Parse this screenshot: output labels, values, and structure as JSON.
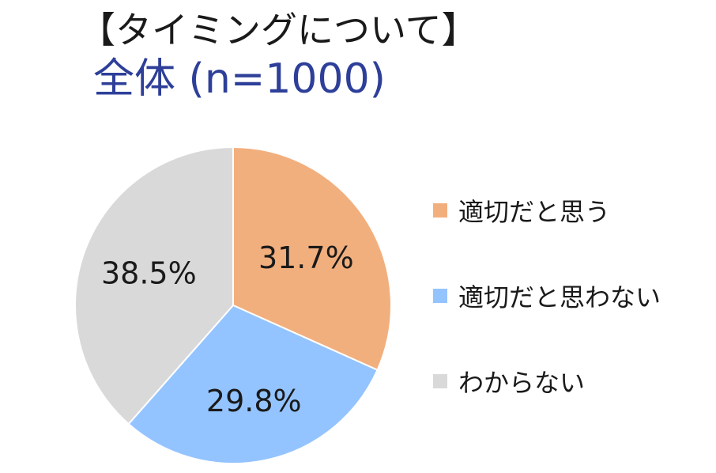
{
  "chart_data": {
    "type": "pie",
    "title": "【タイミングについて】",
    "subtitle": "全体 (n=1000)",
    "slices": [
      {
        "label": "適切だと思う",
        "value": 31.7,
        "value_label": "31.7%",
        "color": "#f2af7e"
      },
      {
        "label": "適切だと思わない",
        "value": 29.8,
        "value_label": "29.8%",
        "color": "#94c4ff"
      },
      {
        "label": "わからない",
        "value": 38.5,
        "value_label": "38.5%",
        "color": "#d9d9d9"
      }
    ],
    "start_angle_deg": 0,
    "direction": "clockwise",
    "legend_position": "right"
  }
}
